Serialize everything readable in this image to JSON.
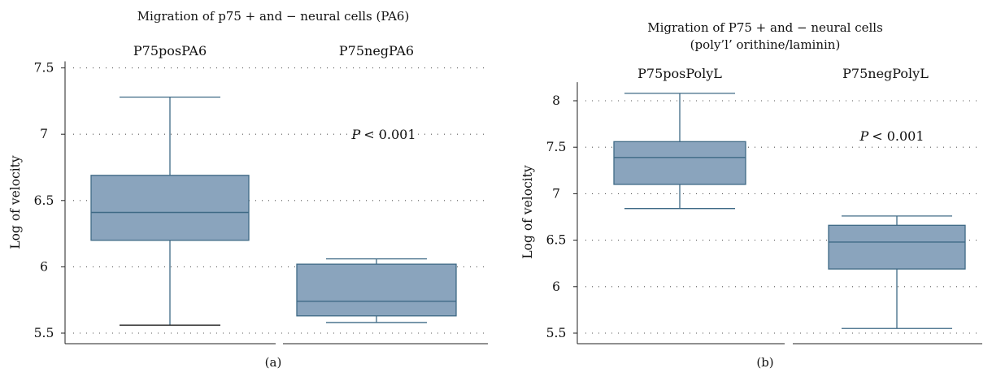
{
  "chart_data": [
    {
      "type": "box",
      "title": "Migration of p75 + and − neural cells (PA6)",
      "subtitle": "",
      "caption": "(a)",
      "ylabel": "Log of velocity",
      "ylim": [
        5.45,
        7.55
      ],
      "yticks": [
        5.5,
        6,
        6.5,
        7,
        7.5
      ],
      "ytick_labels": [
        "5.5",
        "6",
        "6.5",
        "7",
        "7.5"
      ],
      "grid": "dotted-horizontal",
      "box_color": "#8aa4bd",
      "line_color": "#3f6a86",
      "p_value_label": "< 0.001",
      "p_value_italic": "P",
      "panels": [
        {
          "name": "P75posPA6",
          "whisker_low": 5.56,
          "q1": 6.2,
          "median": 6.41,
          "q3": 6.69,
          "whisker_high": 7.28
        },
        {
          "name": "P75negPA6",
          "whisker_low": 5.58,
          "q1": 5.63,
          "median": 5.74,
          "q3": 6.02,
          "whisker_high": 6.06
        }
      ]
    },
    {
      "type": "box",
      "title": "Migration of P75 + and − neural cells",
      "subtitle": "(poly’l’ orithine/laminin)",
      "caption": "(b)",
      "ylabel": "Log of velocity",
      "ylim": [
        5.45,
        8.2
      ],
      "yticks": [
        5.5,
        6,
        6.5,
        7,
        7.5,
        8
      ],
      "ytick_labels": [
        "5.5",
        "6",
        "6.5",
        "7",
        "7.5",
        "8"
      ],
      "grid": "dotted-horizontal",
      "box_color": "#8aa4bd",
      "line_color": "#3f6a86",
      "p_value_label": "< 0.001",
      "p_value_italic": "P",
      "panels": [
        {
          "name": "P75posPolyL",
          "whisker_low": 6.84,
          "q1": 7.1,
          "median": 7.39,
          "q3": 7.56,
          "whisker_high": 8.08
        },
        {
          "name": "P75negPolyL",
          "whisker_low": 5.55,
          "q1": 6.19,
          "median": 6.48,
          "q3": 6.66,
          "whisker_high": 6.76
        }
      ]
    }
  ]
}
